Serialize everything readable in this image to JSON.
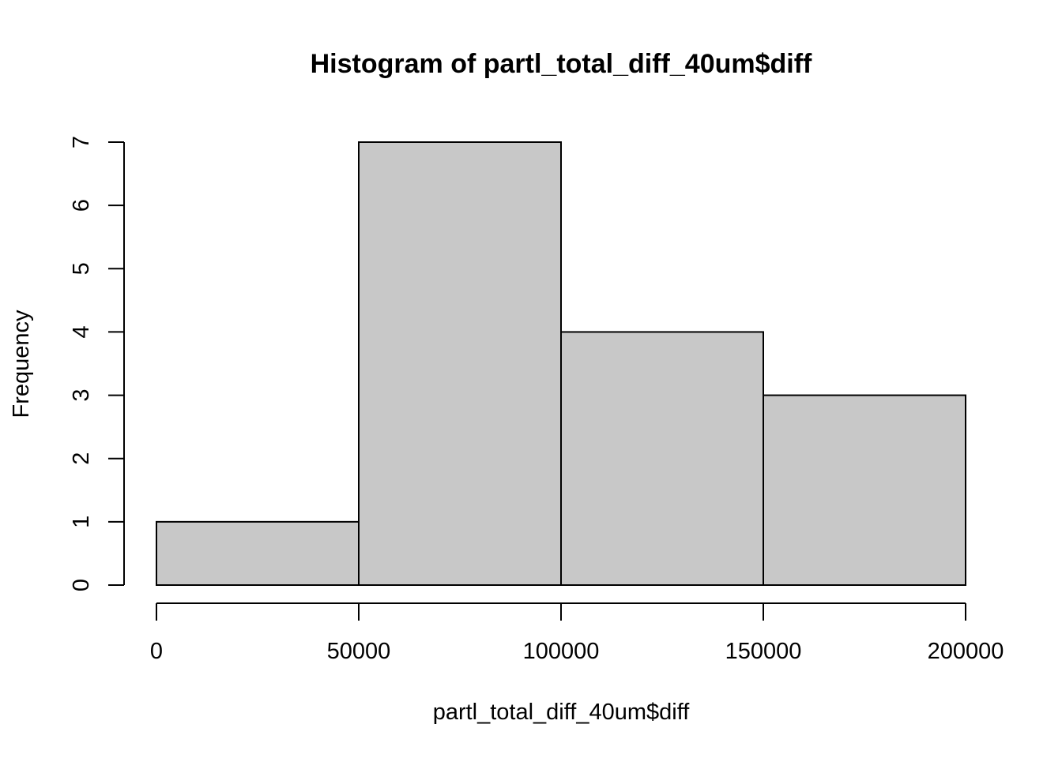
{
  "chart_data": {
    "type": "bar",
    "title": "Histogram of partl_total_diff_40um$diff",
    "xlabel": "partl_total_diff_40um$diff",
    "ylabel": "Frequency",
    "bins": [
      {
        "start": 0,
        "end": 50000,
        "count": 1
      },
      {
        "start": 50000,
        "end": 100000,
        "count": 7
      },
      {
        "start": 100000,
        "end": 150000,
        "count": 4
      },
      {
        "start": 150000,
        "end": 200000,
        "count": 3
      }
    ],
    "xlim": [
      0,
      200000
    ],
    "ylim": [
      0,
      7
    ],
    "x_ticks": [
      0,
      50000,
      100000,
      150000,
      200000
    ],
    "x_tick_labels": [
      "0",
      "50000",
      "100000",
      "150000",
      "200000"
    ],
    "y_ticks": [
      0,
      1,
      2,
      3,
      4,
      5,
      6,
      7
    ],
    "y_tick_labels": [
      "0",
      "1",
      "2",
      "3",
      "4",
      "5",
      "6",
      "7"
    ],
    "grid": false,
    "legend": "none",
    "colors": {
      "bar_fill": "#c8c8c8",
      "bar_stroke": "#000000",
      "axis": "#000000",
      "background": "#ffffff"
    }
  }
}
